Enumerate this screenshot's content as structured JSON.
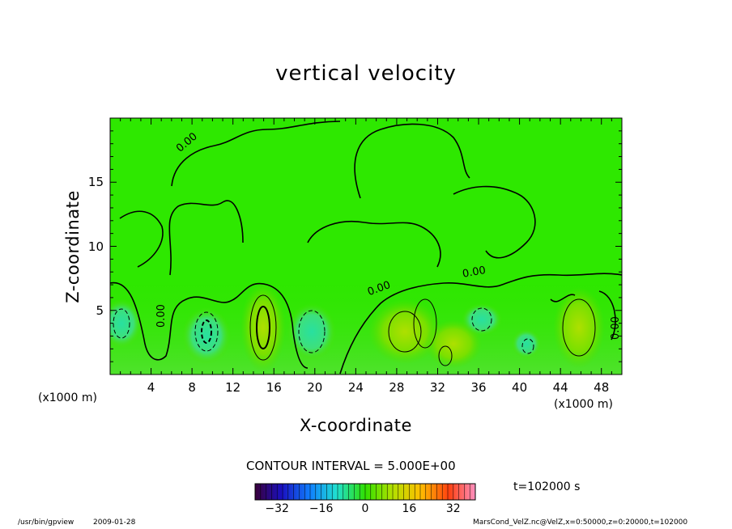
{
  "chart_data": {
    "type": "heatmap",
    "title": "vertical velocity",
    "xlabel": "X-coordinate",
    "ylabel": "Z-coordinate",
    "x_unit": "(x1000 m)",
    "x_unit_right": "(x1000 m)",
    "xlim": [
      0,
      50
    ],
    "ylim": [
      0,
      20
    ],
    "x_ticks": [
      "4",
      "8",
      "12",
      "16",
      "20",
      "24",
      "28",
      "32",
      "36",
      "40",
      "44",
      "48"
    ],
    "y_ticks": [
      "5",
      "10",
      "15"
    ],
    "contour_labels": [
      "0.00",
      "0.00",
      "0.00",
      "0.00",
      "0.00"
    ],
    "contour_interval": "CONTOUR INTERVAL = 5.000E+00",
    "colorbar": {
      "range": [
        -40,
        40
      ],
      "ticks": [
        "−32",
        "−16",
        "0",
        "16",
        "32"
      ]
    },
    "time_label": "t=102000 s",
    "footer_path": "/usr/bin/gpview",
    "footer_date": "2009-01-28",
    "footer_file": "MarsCond_VelZ.nc@VelZ,x=0:50000,z=0:20000,t=102000"
  }
}
